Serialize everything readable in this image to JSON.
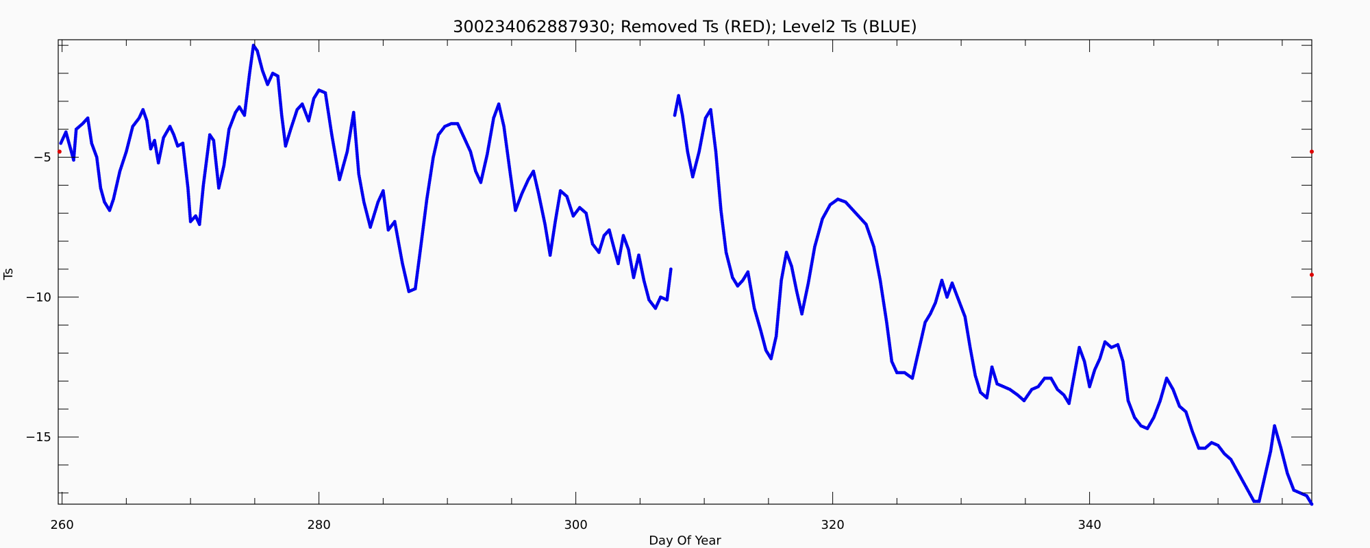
{
  "chart_data": {
    "type": "scatter",
    "title": "300234062887930; Removed Ts (RED); Level2 Ts (BLUE)",
    "xlabel": "Day Of Year",
    "ylabel": "Ts",
    "xlim": [
      259.7,
      357.3
    ],
    "ylim": [
      -17.4,
      -0.8
    ],
    "x_ticks": [
      260,
      280,
      300,
      320,
      340
    ],
    "y_ticks": [
      -5,
      -10,
      -15
    ],
    "grid": false,
    "colors": {
      "removed": "#dd0000",
      "level2": "#0000ee"
    },
    "series": [
      {
        "name": "Removed Ts",
        "points": [
          [
            259.8,
            -4.8
          ],
          [
            357.3,
            -4.8
          ],
          [
            357.3,
            -9.2
          ]
        ]
      },
      {
        "name": "Level2 Ts",
        "segments": [
          [
            [
              259.9,
              -4.5
            ],
            [
              260.3,
              -4.1
            ],
            [
              260.6,
              -4.6
            ],
            [
              260.9,
              -5.1
            ],
            [
              261.1,
              -4.0
            ],
            [
              261.6,
              -3.8
            ],
            [
              262.0,
              -3.6
            ],
            [
              262.3,
              -4.5
            ],
            [
              262.7,
              -5.0
            ],
            [
              263.0,
              -6.1
            ],
            [
              263.3,
              -6.6
            ],
            [
              263.7,
              -6.9
            ],
            [
              264.0,
              -6.5
            ],
            [
              264.5,
              -5.5
            ],
            [
              265.0,
              -4.8
            ],
            [
              265.5,
              -3.9
            ],
            [
              266.0,
              -3.6
            ],
            [
              266.3,
              -3.3
            ],
            [
              266.6,
              -3.7
            ],
            [
              266.9,
              -4.7
            ],
            [
              267.2,
              -4.4
            ],
            [
              267.5,
              -5.2
            ],
            [
              267.9,
              -4.3
            ],
            [
              268.4,
              -3.9
            ],
            [
              268.7,
              -4.2
            ],
            [
              269.0,
              -4.6
            ],
            [
              269.4,
              -4.5
            ],
            [
              269.8,
              -6.1
            ],
            [
              270.0,
              -7.3
            ],
            [
              270.4,
              -7.1
            ],
            [
              270.7,
              -7.4
            ],
            [
              271.0,
              -6.0
            ],
            [
              271.5,
              -4.2
            ],
            [
              271.8,
              -4.4
            ],
            [
              272.2,
              -6.1
            ],
            [
              272.6,
              -5.3
            ],
            [
              273.0,
              -4.0
            ],
            [
              273.5,
              -3.4
            ],
            [
              273.8,
              -3.2
            ],
            [
              274.2,
              -3.5
            ],
            [
              274.6,
              -2.0
            ],
            [
              274.9,
              -1.0
            ],
            [
              275.2,
              -1.2
            ],
            [
              275.6,
              -1.9
            ],
            [
              276.0,
              -2.4
            ],
            [
              276.4,
              -2.0
            ],
            [
              276.8,
              -2.1
            ],
            [
              277.1,
              -3.5
            ],
            [
              277.4,
              -4.6
            ],
            [
              277.8,
              -4.0
            ],
            [
              278.3,
              -3.3
            ],
            [
              278.7,
              -3.1
            ],
            [
              279.2,
              -3.7
            ],
            [
              279.6,
              -2.9
            ],
            [
              280.0,
              -2.6
            ],
            [
              280.5,
              -2.7
            ],
            [
              281.0,
              -4.2
            ],
            [
              281.6,
              -5.8
            ],
            [
              282.2,
              -4.8
            ],
            [
              282.7,
              -3.4
            ],
            [
              283.1,
              -5.6
            ],
            [
              283.5,
              -6.6
            ],
            [
              284.0,
              -7.5
            ],
            [
              284.6,
              -6.6
            ],
            [
              285.0,
              -6.2
            ],
            [
              285.4,
              -7.6
            ],
            [
              285.9,
              -7.3
            ],
            [
              286.5,
              -8.8
            ],
            [
              287.0,
              -9.8
            ],
            [
              287.5,
              -9.7
            ],
            [
              287.9,
              -8.3
            ],
            [
              288.4,
              -6.5
            ],
            [
              288.9,
              -5.0
            ],
            [
              289.3,
              -4.2
            ],
            [
              289.8,
              -3.9
            ],
            [
              290.3,
              -3.8
            ],
            [
              290.8,
              -3.8
            ],
            [
              291.3,
              -4.3
            ],
            [
              291.8,
              -4.8
            ],
            [
              292.2,
              -5.5
            ],
            [
              292.6,
              -5.9
            ],
            [
              293.1,
              -4.9
            ],
            [
              293.6,
              -3.6
            ],
            [
              294.0,
              -3.1
            ],
            [
              294.4,
              -3.9
            ],
            [
              294.9,
              -5.6
            ],
            [
              295.3,
              -6.9
            ],
            [
              295.8,
              -6.3
            ],
            [
              296.3,
              -5.8
            ],
            [
              296.7,
              -5.5
            ],
            [
              297.1,
              -6.3
            ],
            [
              297.6,
              -7.4
            ],
            [
              298.0,
              -8.5
            ],
            [
              298.4,
              -7.3
            ],
            [
              298.8,
              -6.2
            ],
            [
              299.3,
              -6.4
            ],
            [
              299.8,
              -7.1
            ],
            [
              300.3,
              -6.8
            ],
            [
              300.8,
              -7.0
            ],
            [
              301.3,
              -8.1
            ],
            [
              301.8,
              -8.4
            ],
            [
              302.2,
              -7.8
            ],
            [
              302.6,
              -7.6
            ],
            [
              303.0,
              -8.3
            ],
            [
              303.3,
              -8.8
            ],
            [
              303.7,
              -7.8
            ],
            [
              304.1,
              -8.3
            ],
            [
              304.5,
              -9.3
            ],
            [
              304.9,
              -8.5
            ],
            [
              305.3,
              -9.4
            ],
            [
              305.7,
              -10.1
            ],
            [
              306.2,
              -10.4
            ],
            [
              306.6,
              -10.0
            ],
            [
              307.1,
              -10.1
            ],
            [
              307.4,
              -9.0
            ]
          ],
          [
            [
              307.7,
              -3.5
            ],
            [
              308.0,
              -2.8
            ],
            [
              308.3,
              -3.5
            ],
            [
              308.7,
              -4.8
            ],
            [
              309.1,
              -5.7
            ],
            [
              309.6,
              -4.8
            ],
            [
              310.1,
              -3.6
            ],
            [
              310.5,
              -3.3
            ],
            [
              310.9,
              -4.8
            ],
            [
              311.3,
              -6.9
            ],
            [
              311.7,
              -8.4
            ],
            [
              312.2,
              -9.3
            ],
            [
              312.6,
              -9.6
            ],
            [
              313.0,
              -9.4
            ],
            [
              313.4,
              -9.1
            ],
            [
              313.9,
              -10.4
            ],
            [
              314.4,
              -11.2
            ],
            [
              314.8,
              -11.9
            ],
            [
              315.2,
              -12.2
            ],
            [
              315.6,
              -11.4
            ],
            [
              316.0,
              -9.4
            ],
            [
              316.4,
              -8.4
            ],
            [
              316.8,
              -8.9
            ],
            [
              317.2,
              -9.8
            ],
            [
              317.6,
              -10.6
            ],
            [
              318.1,
              -9.5
            ],
            [
              318.6,
              -8.2
            ],
            [
              319.2,
              -7.2
            ],
            [
              319.8,
              -6.7
            ],
            [
              320.4,
              -6.5
            ],
            [
              321.0,
              -6.6
            ],
            [
              321.8,
              -7.0
            ],
            [
              322.6,
              -7.4
            ],
            [
              323.2,
              -8.2
            ],
            [
              323.7,
              -9.4
            ],
            [
              324.2,
              -10.9
            ],
            [
              324.6,
              -12.3
            ],
            [
              325.0,
              -12.7
            ],
            [
              325.6,
              -12.7
            ],
            [
              326.2,
              -12.9
            ],
            [
              326.7,
              -11.9
            ],
            [
              327.2,
              -10.9
            ],
            [
              327.6,
              -10.6
            ],
            [
              328.0,
              -10.2
            ],
            [
              328.5,
              -9.4
            ],
            [
              328.9,
              -10.0
            ],
            [
              329.3,
              -9.5
            ],
            [
              329.8,
              -10.1
            ],
            [
              330.3,
              -10.7
            ],
            [
              330.7,
              -11.8
            ],
            [
              331.1,
              -12.8
            ],
            [
              331.5,
              -13.4
            ],
            [
              332.0,
              -13.6
            ],
            [
              332.4,
              -12.5
            ],
            [
              332.8,
              -13.1
            ],
            [
              333.3,
              -13.2
            ],
            [
              333.8,
              -13.3
            ],
            [
              334.4,
              -13.5
            ],
            [
              334.9,
              -13.7
            ],
            [
              335.5,
              -13.3
            ],
            [
              336.0,
              -13.2
            ],
            [
              336.5,
              -12.9
            ],
            [
              337.0,
              -12.9
            ],
            [
              337.5,
              -13.3
            ],
            [
              338.0,
              -13.5
            ],
            [
              338.4,
              -13.8
            ],
            [
              338.8,
              -12.8
            ],
            [
              339.2,
              -11.8
            ],
            [
              339.6,
              -12.3
            ],
            [
              340.0,
              -13.2
            ],
            [
              340.4,
              -12.6
            ],
            [
              340.8,
              -12.2
            ],
            [
              341.2,
              -11.6
            ],
            [
              341.7,
              -11.8
            ],
            [
              342.2,
              -11.7
            ],
            [
              342.6,
              -12.3
            ],
            [
              343.0,
              -13.7
            ],
            [
              343.5,
              -14.3
            ],
            [
              344.0,
              -14.6
            ],
            [
              344.5,
              -14.7
            ],
            [
              345.0,
              -14.3
            ],
            [
              345.5,
              -13.7
            ],
            [
              346.0,
              -12.9
            ],
            [
              346.5,
              -13.3
            ],
            [
              347.0,
              -13.9
            ],
            [
              347.5,
              -14.1
            ],
            [
              348.0,
              -14.8
            ],
            [
              348.5,
              -15.4
            ],
            [
              349.0,
              -15.4
            ],
            [
              349.5,
              -15.2
            ],
            [
              350.0,
              -15.3
            ],
            [
              350.5,
              -15.6
            ],
            [
              351.0,
              -15.8
            ],
            [
              351.6,
              -16.3
            ],
            [
              352.2,
              -16.8
            ],
            [
              352.8,
              -17.3
            ],
            [
              353.2,
              -17.3
            ],
            [
              353.6,
              -16.5
            ],
            [
              354.1,
              -15.5
            ],
            [
              354.4,
              -14.6
            ],
            [
              354.9,
              -15.4
            ],
            [
              355.4,
              -16.3
            ],
            [
              355.9,
              -16.9
            ],
            [
              356.4,
              -17.0
            ],
            [
              356.9,
              -17.1
            ],
            [
              357.3,
              -17.4
            ]
          ]
        ]
      }
    ]
  }
}
